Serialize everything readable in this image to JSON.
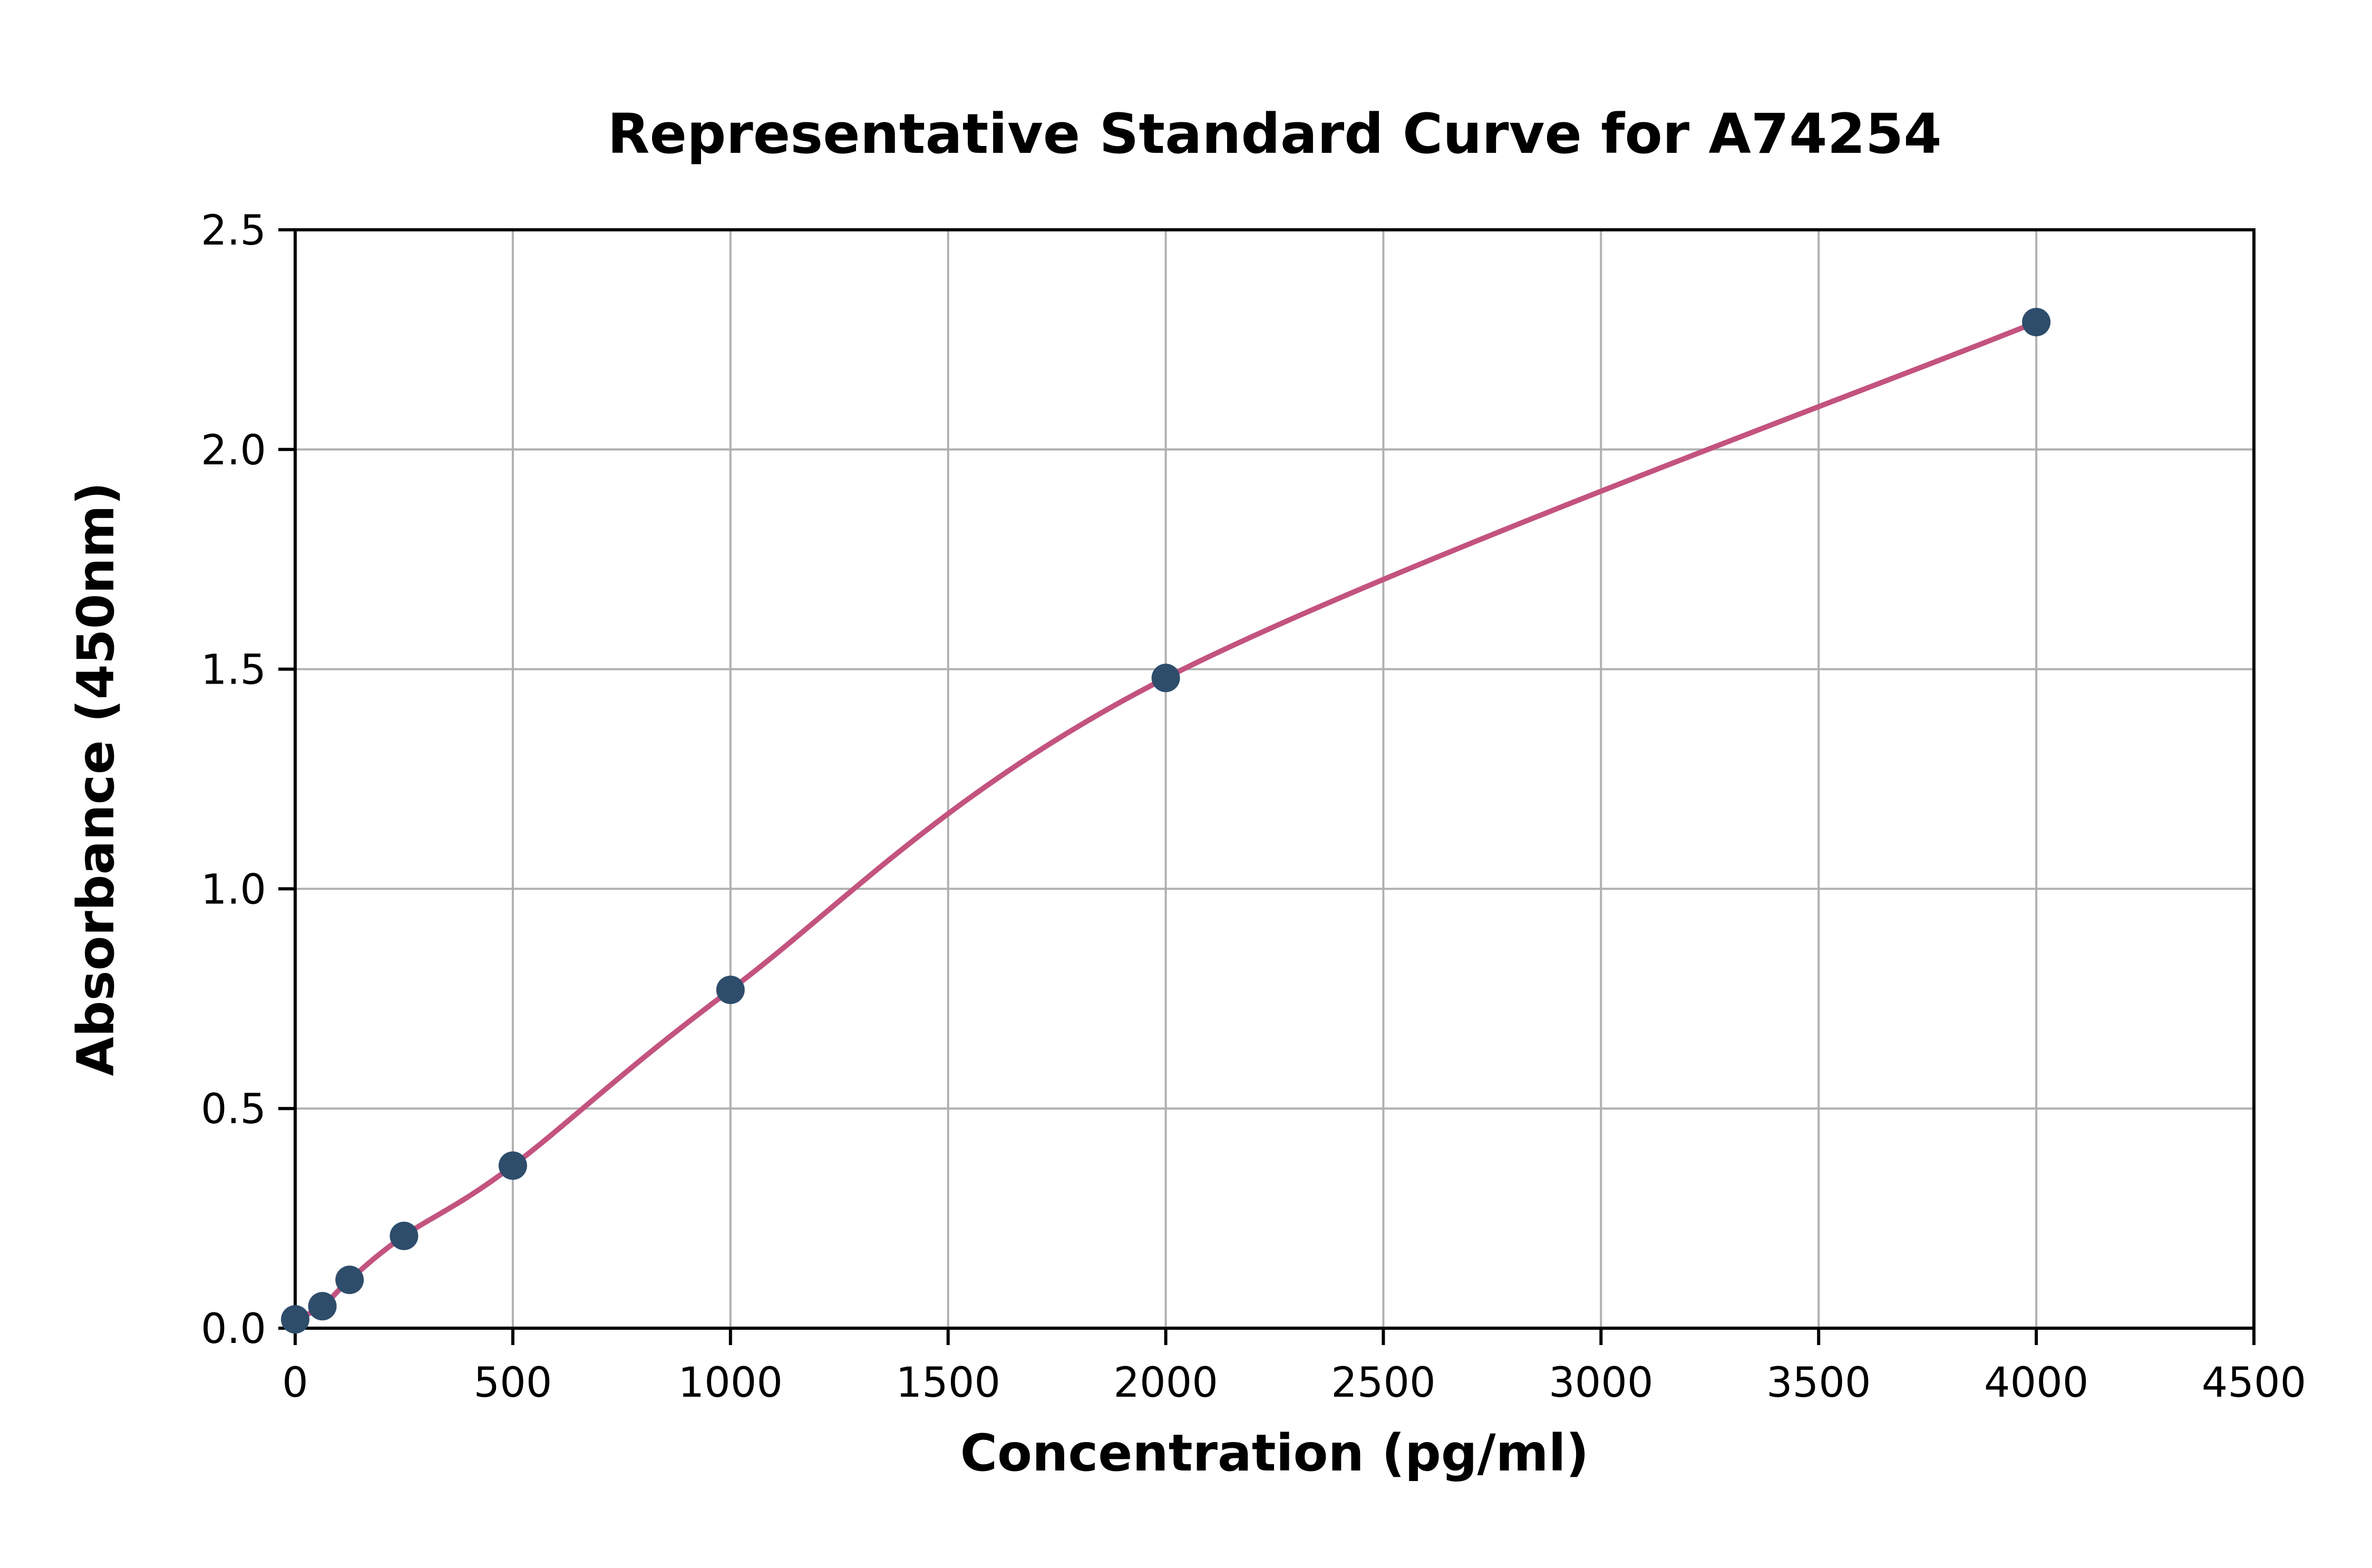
{
  "chart_data": {
    "type": "scatter",
    "title": "Representative Standard Curve for A74254",
    "xlabel": "Concentration (pg/ml)",
    "ylabel": "Absorbance (450nm)",
    "xlim": [
      0,
      4500
    ],
    "ylim": [
      0,
      2.5
    ],
    "grid": true,
    "legend": "none",
    "xticks": [
      0,
      500,
      1000,
      1500,
      2000,
      2500,
      3000,
      3500,
      4000,
      4500
    ],
    "xtick_labels": [
      "0",
      "500",
      "1000",
      "1500",
      "2000",
      "2500",
      "3000",
      "3500",
      "4000",
      "4500"
    ],
    "yticks": [
      0,
      0.5,
      1.0,
      1.5,
      2.0,
      2.5
    ],
    "ytick_labels": [
      "0.0",
      "0.5",
      "1.0",
      "1.5",
      "2.0",
      "2.5"
    ],
    "points": {
      "x": [
        0,
        62.5,
        125,
        250,
        500,
        1000,
        2000,
        4000
      ],
      "y": [
        0.02,
        0.05,
        0.11,
        0.21,
        0.37,
        0.77,
        1.48,
        2.29
      ]
    },
    "colors": {
      "curve": "#c3537f",
      "point": "#2e4d6b",
      "grid": "#b0b0b0",
      "spine": "#000000"
    }
  }
}
